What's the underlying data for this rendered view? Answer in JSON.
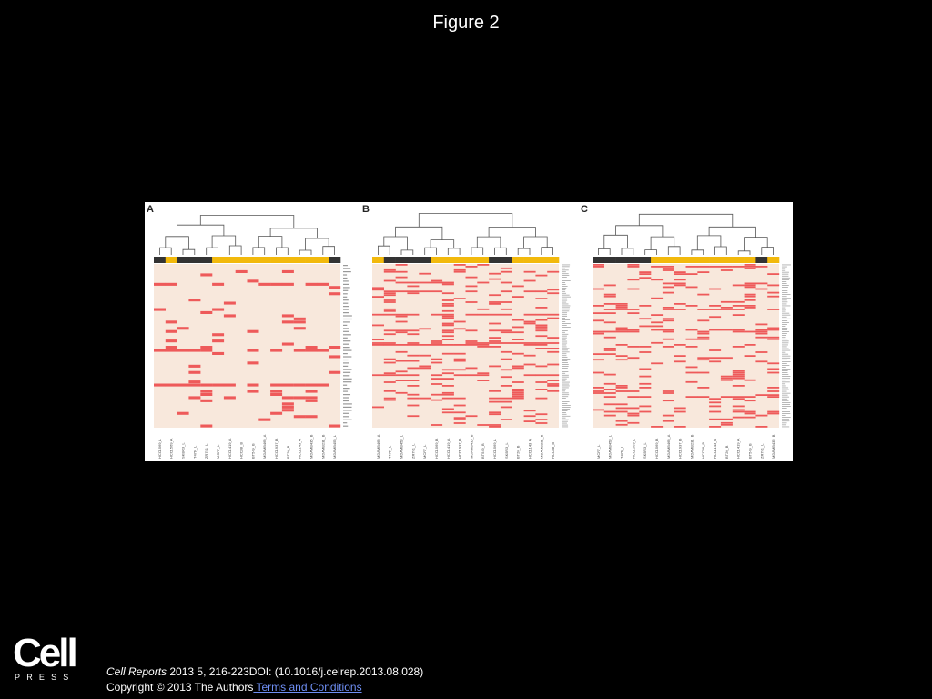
{
  "slide": {
    "title": "Figure 2"
  },
  "figure": {
    "colors": {
      "background": "#f8e8dc",
      "cell_hit": "#ee5a5a",
      "group_dark": "#333333",
      "group_yellow": "#f2b90c",
      "dendrogram": "#555555"
    },
    "panels": [
      {
        "letter": "A",
        "samples": [
          "HCC1569_L",
          "HCC1569_A",
          "SKBR3_L",
          "T47D_L",
          "ZR751_L",
          "MCF7_L",
          "HCC1419_A",
          "HCC38_B",
          "BT549_B",
          "MDAMB468_A",
          "HCC1937_B",
          "BT20_B",
          "HCC1143_A",
          "MDAMB436_B",
          "MDAMB231_B",
          "MDAMB453_L"
        ],
        "group_bar": [
          "dark",
          "yellow",
          "dark",
          "dark",
          "dark",
          "yellow",
          "yellow",
          "yellow",
          "yellow",
          "yellow",
          "yellow",
          "yellow",
          "yellow",
          "yellow",
          "yellow",
          "dark"
        ]
      },
      {
        "letter": "B",
        "samples": [
          "MDAMB468_A",
          "T47D_L",
          "MDAMB453_L",
          "ZR751_L",
          "MCF7_L",
          "HCC1569_B",
          "HCC1419_A",
          "HCC1937_B",
          "MDAMB436_B",
          "BT549_B",
          "HCC1569_L",
          "SKBR3_L",
          "BT20_B",
          "HCC1143_A",
          "MDAMB231_B",
          "HCC38_B"
        ],
        "group_bar": [
          "yellow",
          "dark",
          "dark",
          "dark",
          "dark",
          "yellow",
          "yellow",
          "yellow",
          "yellow",
          "yellow",
          "dark",
          "dark",
          "yellow",
          "yellow",
          "yellow",
          "yellow"
        ]
      },
      {
        "letter": "C",
        "samples": [
          "MCF7_L",
          "MDAMB453_L",
          "T47D_L",
          "HCC1569_L",
          "SKBR3_L",
          "HCC1569_B",
          "MDAMB468_A",
          "HCC1937_B",
          "MDAMB231_B",
          "HCC38_B",
          "HCC1143_A",
          "BT20_B",
          "HCC1419_A",
          "BT549_B",
          "ZR751_L",
          "MDAMB436_B"
        ],
        "group_bar": [
          "dark",
          "dark",
          "dark",
          "dark",
          "dark",
          "yellow",
          "yellow",
          "yellow",
          "yellow",
          "yellow",
          "yellow",
          "yellow",
          "yellow",
          "yellow",
          "dark",
          "yellow"
        ]
      }
    ]
  },
  "citation": {
    "journal": "Cell Reports",
    "details": " 2013 5, 216-223DOI: (10.1016/j.celrep.2013.08.028)"
  },
  "footer": {
    "copyright": "Copyright © 2013 The Authors",
    "terms_link": " Terms and Conditions"
  },
  "logo": {
    "wordmark": "Cell",
    "subtitle": "PRESS"
  }
}
